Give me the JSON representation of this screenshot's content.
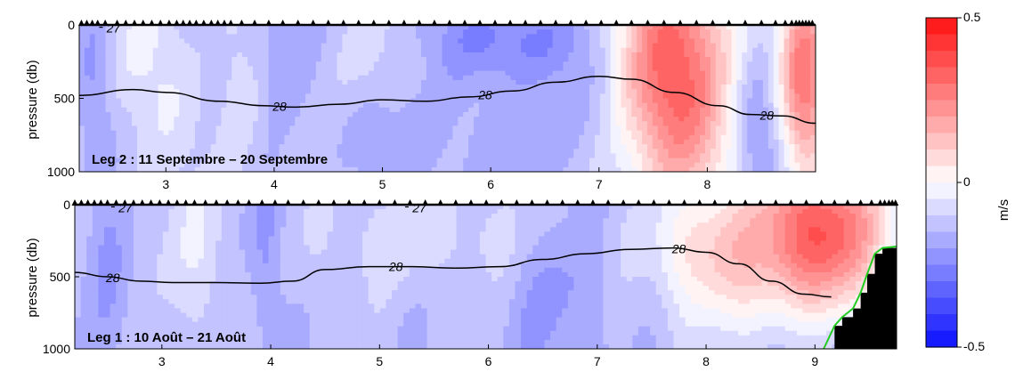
{
  "chart_data": [
    {
      "type": "heatmap",
      "panel": "leg2",
      "label": "Leg 2 : 11 Septembre – 20 Septembre",
      "ylabel": "pressure (db)",
      "xlim": [
        2.2,
        9.0
      ],
      "ylim": [
        1000,
        0
      ],
      "yticks": [
        0,
        500,
        1000
      ],
      "xticks": [
        3,
        4,
        5,
        6,
        7,
        8
      ],
      "contour_28": {
        "label": "28",
        "x": [
          2.2,
          2.7,
          3.0,
          3.5,
          3.9,
          4.2,
          4.6,
          5.0,
          5.4,
          5.8,
          6.2,
          6.6,
          7.0,
          7.3,
          7.7,
          8.1,
          8.4,
          8.7,
          9.0
        ],
        "y": [
          480,
          440,
          460,
          520,
          550,
          560,
          540,
          510,
          520,
          490,
          450,
          390,
          350,
          370,
          460,
          550,
          610,
          620,
          670
        ],
        "label_x": [
          4.05,
          5.95,
          8.55
        ]
      },
      "contour_27": {
        "label": "27",
        "x": [
          2.45
        ],
        "y": [
          40
        ]
      },
      "station_x": [
        2.22,
        2.27,
        2.32,
        2.37,
        2.44,
        2.55,
        2.63,
        2.71,
        2.79,
        2.87,
        2.95,
        3.03,
        3.1,
        3.16,
        3.22,
        3.28,
        3.35,
        3.42,
        3.48,
        3.54,
        3.6,
        3.7,
        3.82,
        3.95,
        4.08,
        4.22,
        4.36,
        4.5,
        4.64,
        4.78,
        4.92,
        5.06,
        5.2,
        5.34,
        5.48,
        5.62,
        5.76,
        5.9,
        6.04,
        6.18,
        6.32,
        6.46,
        6.6,
        6.74,
        6.88,
        7.02,
        7.16,
        7.3,
        7.45,
        7.6,
        7.75,
        7.9,
        8.05,
        8.2,
        8.35,
        8.5,
        8.63,
        8.72,
        8.78,
        8.82,
        8.85,
        8.88,
        8.91,
        8.94,
        8.97
      ]
    },
    {
      "type": "heatmap",
      "panel": "leg1",
      "label": "Leg 1 : 10 Août – 21 Août",
      "ylabel": "pressure (db)",
      "xlim": [
        2.2,
        9.75
      ],
      "ylim": [
        1000,
        0
      ],
      "yticks": [
        0,
        500,
        1000
      ],
      "xticks": [
        3,
        4,
        5,
        6,
        7,
        8,
        9
      ],
      "contour_28": {
        "label": "28",
        "x": [
          2.2,
          2.5,
          2.8,
          3.1,
          3.5,
          3.9,
          4.2,
          4.5,
          4.9,
          5.3,
          5.7,
          6.1,
          6.5,
          6.9,
          7.3,
          7.7,
          8.0,
          8.3,
          8.6,
          8.9,
          9.15
        ],
        "y": [
          470,
          500,
          530,
          540,
          540,
          545,
          530,
          450,
          430,
          430,
          440,
          430,
          380,
          340,
          310,
          300,
          330,
          410,
          530,
          620,
          640
        ],
        "label_x": [
          2.55,
          5.15,
          7.75
        ]
      },
      "contour_27": {
        "label": "27",
        "x": [
          2.6,
          5.3
        ],
        "y": [
          40,
          40
        ]
      },
      "topography": {
        "x": [
          9.08,
          9.18,
          9.25,
          9.35,
          9.42,
          9.48,
          9.55,
          9.62,
          9.75
        ],
        "y": [
          1000,
          840,
          780,
          720,
          610,
          480,
          340,
          300,
          290
        ]
      },
      "station_x": [
        2.2,
        2.26,
        2.32,
        2.38,
        2.44,
        2.5,
        2.58,
        2.66,
        2.74,
        2.82,
        2.9,
        2.98,
        3.06,
        3.14,
        3.22,
        3.3,
        3.4,
        3.5,
        3.6,
        3.7,
        3.8,
        3.92,
        4.04,
        4.16,
        4.3,
        4.44,
        4.58,
        4.72,
        4.86,
        5.0,
        5.14,
        5.28,
        5.42,
        5.56,
        5.7,
        5.84,
        5.98,
        6.12,
        6.26,
        6.4,
        6.54,
        6.68,
        6.82,
        6.96,
        7.1,
        7.24,
        7.38,
        7.52,
        7.66,
        7.8,
        7.94,
        8.08,
        8.22,
        8.36,
        8.5,
        8.64,
        8.78,
        8.92,
        9.06,
        9.18,
        9.3,
        9.42,
        9.52,
        9.6,
        9.64,
        9.68,
        9.71,
        9.74
      ]
    }
  ],
  "colorbar": {
    "unit": "m/s",
    "min": -0.5,
    "max": 0.5,
    "ticks": [
      "0.5",
      "0",
      "-0.5"
    ],
    "levels": 20,
    "neg_color": "#0a10ff",
    "pos_color": "#ff1010",
    "zero_color": "#ffffff"
  }
}
